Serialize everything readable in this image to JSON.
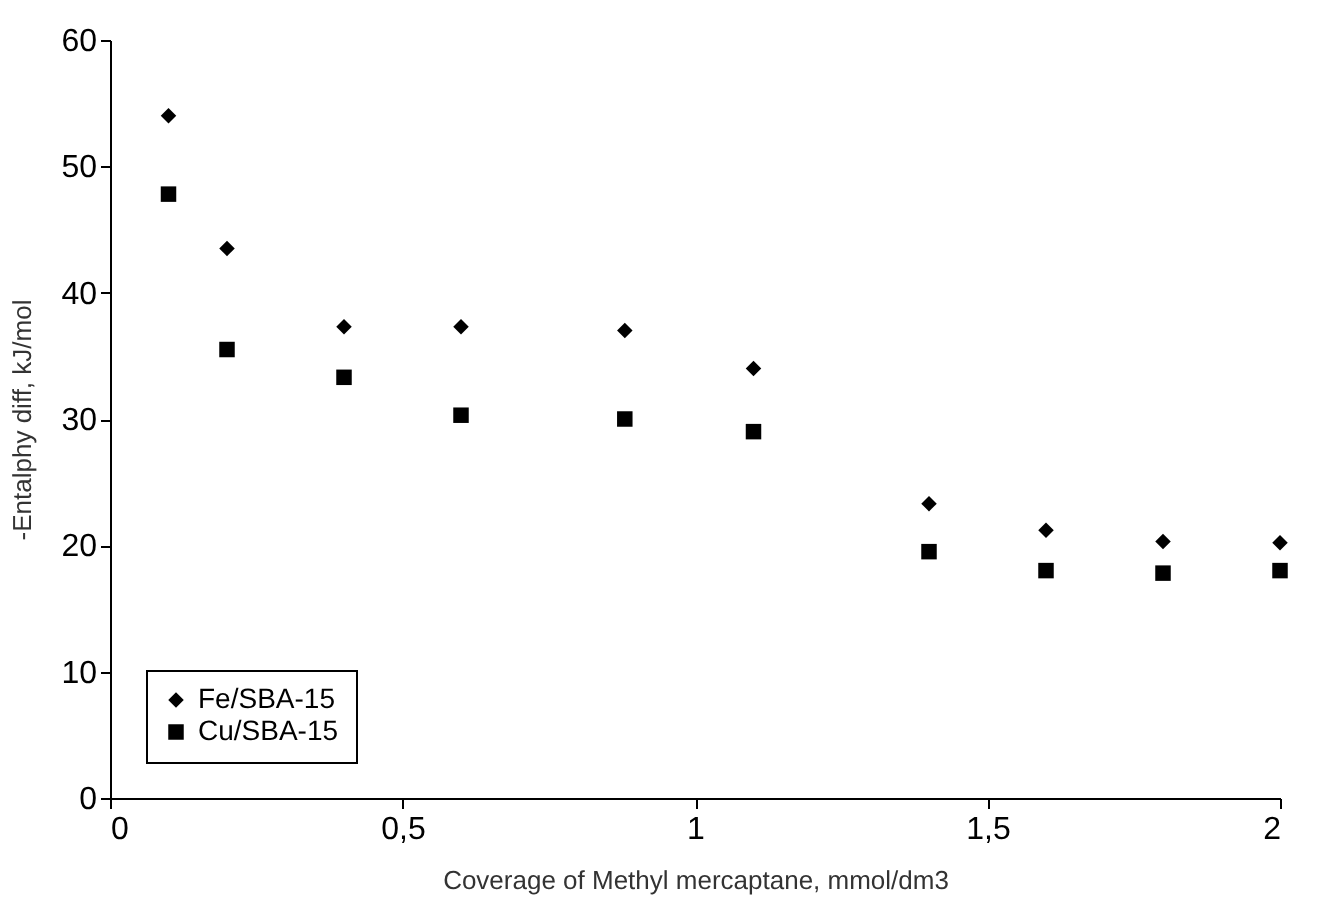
{
  "chart_data": {
    "type": "scatter",
    "xlabel": "Coverage of Methyl mercaptane, mmol/dm3",
    "ylabel": "-Entalphy diff, kJ/mol",
    "x": [
      0.1,
      0.2,
      0.4,
      0.6,
      0.88,
      1.1,
      1.4,
      1.6,
      1.8,
      2.0
    ],
    "series": [
      {
        "name": "Fe/SBA-15",
        "color": "#000000",
        "marker": "diamond",
        "values": [
          54,
          43.5,
          37.3,
          37.3,
          37,
          34,
          23.3,
          21.2,
          20.3,
          20.2
        ]
      },
      {
        "name": "Cu/SBA-15",
        "color": "#000000",
        "marker": "square",
        "values": [
          47.8,
          35.5,
          33.3,
          30.3,
          30,
          29,
          19.5,
          18,
          17.8,
          18
        ]
      }
    ],
    "xlim": [
      0,
      2
    ],
    "xticks": [
      0,
      {
        "value": 0.5,
        "label": "0,5"
      },
      1,
      {
        "value": 1.5,
        "label": "1,5"
      },
      2
    ],
    "ylim": [
      0,
      60
    ],
    "yticks": [
      0,
      10,
      20,
      30,
      40,
      50,
      60
    ],
    "grid": false,
    "legend": "bottom left"
  }
}
